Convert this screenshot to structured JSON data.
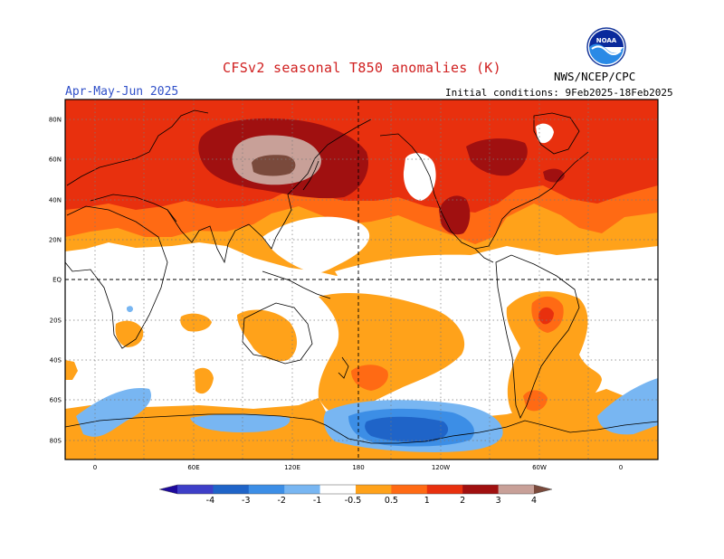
{
  "header": {
    "title": "CFSv2 seasonal T850 anomalies (K)",
    "period": "Apr-May-Jun 2025",
    "initial_conditions": "Initial conditions: 9Feb2025-18Feb2025",
    "agency": "NWS/NCEP/CPC",
    "logo_text": "NOAA"
  },
  "axes": {
    "lat_labels": [
      "80N",
      "60N",
      "40N",
      "20N",
      "EQ",
      "20S",
      "40S",
      "60S",
      "80S"
    ],
    "lon_labels": [
      "0",
      "60E",
      "120E",
      "180",
      "120W",
      "60W",
      "0"
    ]
  },
  "legend": {
    "ticks": [
      "-4",
      "-3",
      "-2",
      "-1",
      "-0.5",
      "0.5",
      "1",
      "2",
      "3",
      "4"
    ],
    "colors": [
      "#1e0a9c",
      "#3e3fc8",
      "#1f64c8",
      "#3c8ee6",
      "#78b6f2",
      "#ffffff",
      "#ffa21a",
      "#ff6a14",
      "#e8300e",
      "#a01010",
      "#c8a098",
      "#7a4a3c"
    ]
  },
  "colors": {
    "warm_1": "#ffa21a",
    "warm_2": "#ff6a14",
    "warm_3": "#e8300e",
    "warm_4": "#a01010",
    "warm_5": "#c8a098",
    "warm_6": "#7a4a3c",
    "cool_1": "#78b6f2",
    "cool_2": "#3c8ee6",
    "cool_3": "#1f64c8",
    "title": "#d02020",
    "period": "#3050c8"
  }
}
